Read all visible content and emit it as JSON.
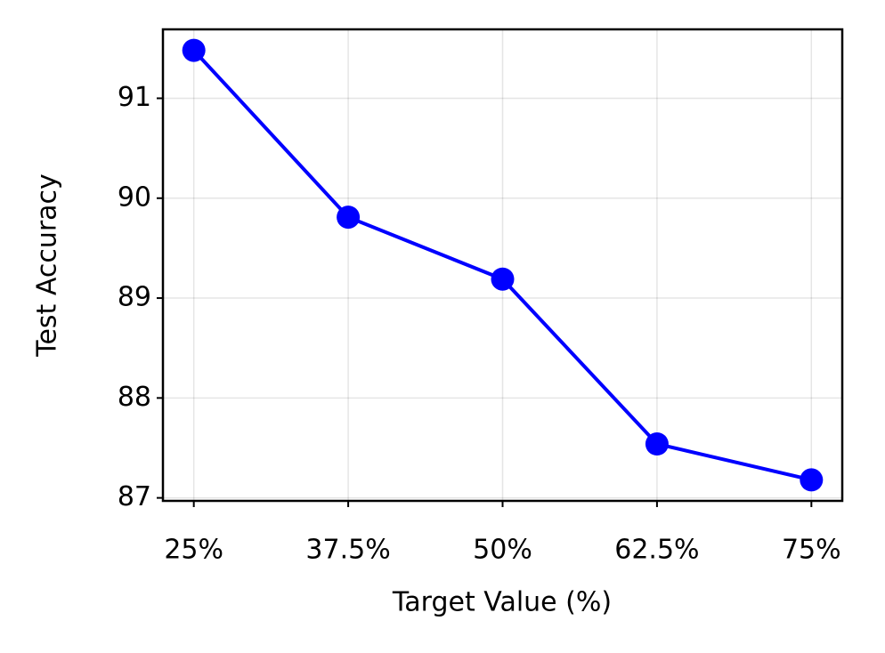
{
  "chart_data": {
    "type": "line",
    "xlabel": "Target Value (%)",
    "ylabel": "Test Accuracy",
    "x": [
      25,
      37.5,
      50,
      62.5,
      75
    ],
    "series": [
      {
        "name": "Test Accuracy",
        "color": "#0000ff",
        "values": [
          91.48,
          89.81,
          89.19,
          87.54,
          87.18
        ]
      }
    ],
    "xlim": [
      22.5,
      77.5
    ],
    "xticks": [
      {
        "value": 25,
        "label": "25%"
      },
      {
        "value": 37.5,
        "label": "37.5%"
      },
      {
        "value": 50,
        "label": "50%"
      },
      {
        "value": 62.5,
        "label": "62.5%"
      },
      {
        "value": 75,
        "label": "75%"
      }
    ],
    "ylim": [
      86.97,
      91.69
    ],
    "yticks": [
      87,
      88,
      89,
      90,
      91
    ],
    "grid": true
  }
}
